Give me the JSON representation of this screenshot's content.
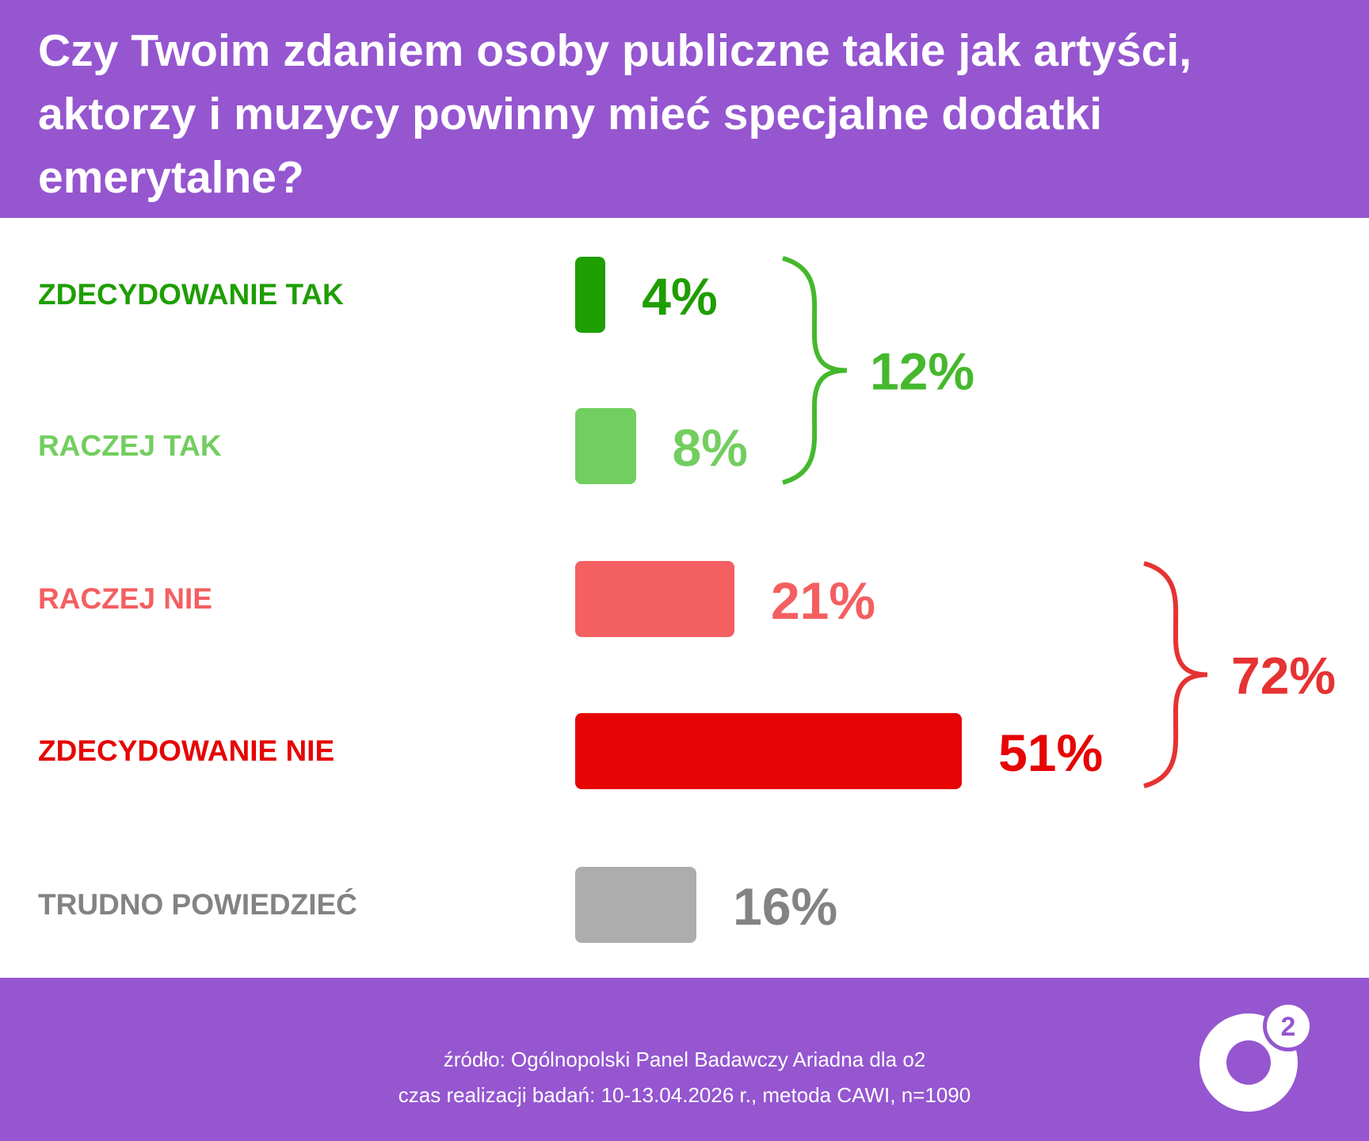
{
  "title": "Czy Twoim zdaniem osoby publiczne takie jak artyści, aktorzy i muzycy powinny mieć specjalne dodatki emerytalne?",
  "chart_data": {
    "type": "bar",
    "orientation": "horizontal",
    "title": "Czy Twoim zdaniem osoby publiczne takie jak artyści, aktorzy i muzycy powinny mieć specjalne dodatki emerytalne?",
    "categories": [
      "ZDECYDOWANIE TAK",
      "RACZEJ TAK",
      "RACZEJ NIE",
      "ZDECYDOWANIE NIE",
      "TRUDNO POWIEDZIEĆ"
    ],
    "values": [
      4,
      8,
      21,
      51,
      16
    ],
    "value_labels": [
      "4%",
      "8%",
      "21%",
      "51%",
      "16%"
    ],
    "colors": [
      "#1E9E00",
      "#72CE5F",
      "#F45F61",
      "#E60505",
      "#ADADAD"
    ],
    "label_colors": [
      "#1E9E00",
      "#72CE5F",
      "#F45F61",
      "#E60505",
      "#838383"
    ],
    "groups": [
      {
        "categories": [
          "ZDECYDOWANIE TAK",
          "RACZEJ TAK"
        ],
        "total": 12,
        "label": "12%",
        "color": "#45B82D"
      },
      {
        "categories": [
          "RACZEJ NIE",
          "ZDECYDOWANIE NIE"
        ],
        "total": 72,
        "label": "72%",
        "color": "#E63232"
      }
    ],
    "grid": false,
    "axes_visible": false
  },
  "footer": {
    "source": "źródło: Ogólnopolski Panel Badawczy Ariadna dla o2",
    "details": "czas realizacji badań: 10-13.04.2026 r., metoda CAWI, n=1090",
    "logo_text": "o2"
  },
  "brand_color": "#9556D0"
}
